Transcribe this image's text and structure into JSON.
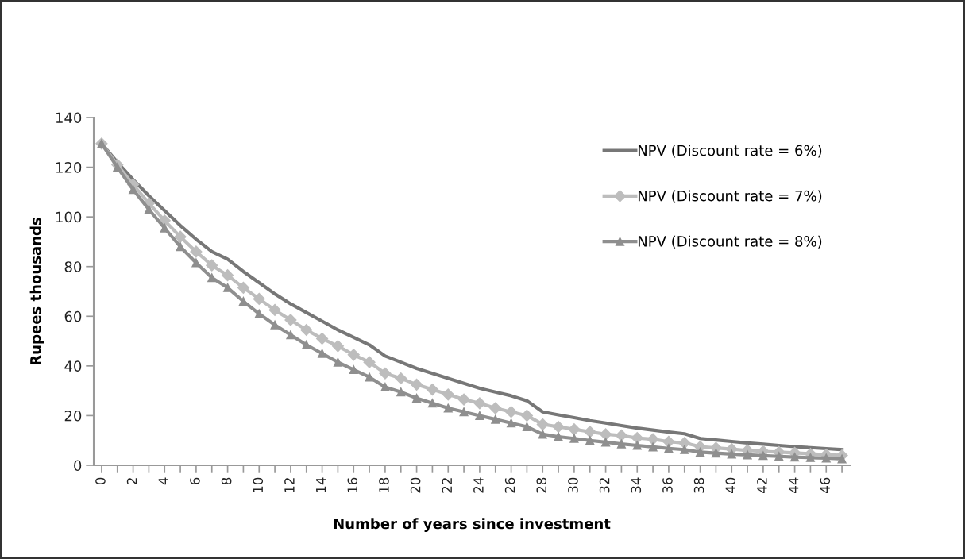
{
  "chart_data": {
    "type": "line",
    "xlabel": "Number of years since investment",
    "ylabel": "Rupees thousands",
    "categories": [
      "0",
      null,
      "2",
      null,
      "4",
      null,
      "6",
      null,
      "8",
      null,
      "10",
      null,
      "12",
      null,
      "14",
      null,
      "16",
      null,
      "18",
      null,
      "20",
      null,
      "22",
      null,
      "24",
      null,
      "26",
      null,
      "28",
      null,
      "30",
      null,
      "32",
      null,
      "34",
      null,
      "36",
      null,
      "38",
      null,
      "40",
      null,
      "42",
      null,
      "44",
      null,
      "46",
      null
    ],
    "ylim": [
      0,
      140
    ],
    "yticks": [
      0,
      20,
      40,
      60,
      80,
      100,
      120,
      140
    ],
    "grid": false,
    "legend": "top right",
    "series": [
      {
        "name": "NPV (Discount rate = 6%)",
        "color": "#777777",
        "marker": "none",
        "values": [
          129.5,
          122,
          115,
          108.5,
          102.5,
          96.5,
          91,
          86,
          83,
          78,
          73.5,
          69,
          65,
          61.5,
          58,
          54.5,
          51.5,
          48.5,
          44,
          41.5,
          39,
          37,
          35,
          33,
          31,
          29.5,
          28,
          26,
          21.5,
          20.3,
          19.2,
          18,
          17,
          16,
          15,
          14.2,
          13.4,
          12.7,
          10.8,
          10.2,
          9.6,
          9,
          8.5,
          8,
          7.5,
          7.1,
          6.7,
          6.3
        ]
      },
      {
        "name": "NPV (Discount rate = 7%)",
        "color": "#bdbdbd",
        "marker": "diamond",
        "values": [
          129.5,
          121,
          113,
          105.5,
          98.5,
          92,
          86,
          80.5,
          76.5,
          71.5,
          67,
          62.5,
          58.5,
          54.5,
          51,
          48,
          44.5,
          41.5,
          37,
          35,
          32.5,
          30.5,
          28.5,
          26.5,
          25,
          23,
          21.5,
          20,
          16.5,
          15.5,
          14.5,
          13.5,
          12.5,
          12,
          11,
          10.5,
          9.5,
          9,
          7.5,
          7,
          6.5,
          6,
          5.6,
          5.3,
          5,
          4.6,
          4.3,
          4
        ]
      },
      {
        "name": "NPV (Discount rate = 8%)",
        "color": "#8f8f8f",
        "marker": "triangle",
        "values": [
          129.5,
          120,
          111,
          103,
          95.5,
          88,
          81.5,
          75.5,
          71.5,
          66,
          61,
          56.5,
          52.5,
          48.5,
          45,
          41.5,
          38.5,
          35.5,
          31.5,
          29.5,
          27,
          25,
          23,
          21.5,
          20,
          18.5,
          17,
          15.5,
          12.5,
          11.5,
          10.8,
          10,
          9.3,
          8.6,
          8,
          7.4,
          6.8,
          6.3,
          5.3,
          4.9,
          4.5,
          4.2,
          3.9,
          3.6,
          3.3,
          3.1,
          2.9,
          2.6
        ]
      }
    ]
  }
}
